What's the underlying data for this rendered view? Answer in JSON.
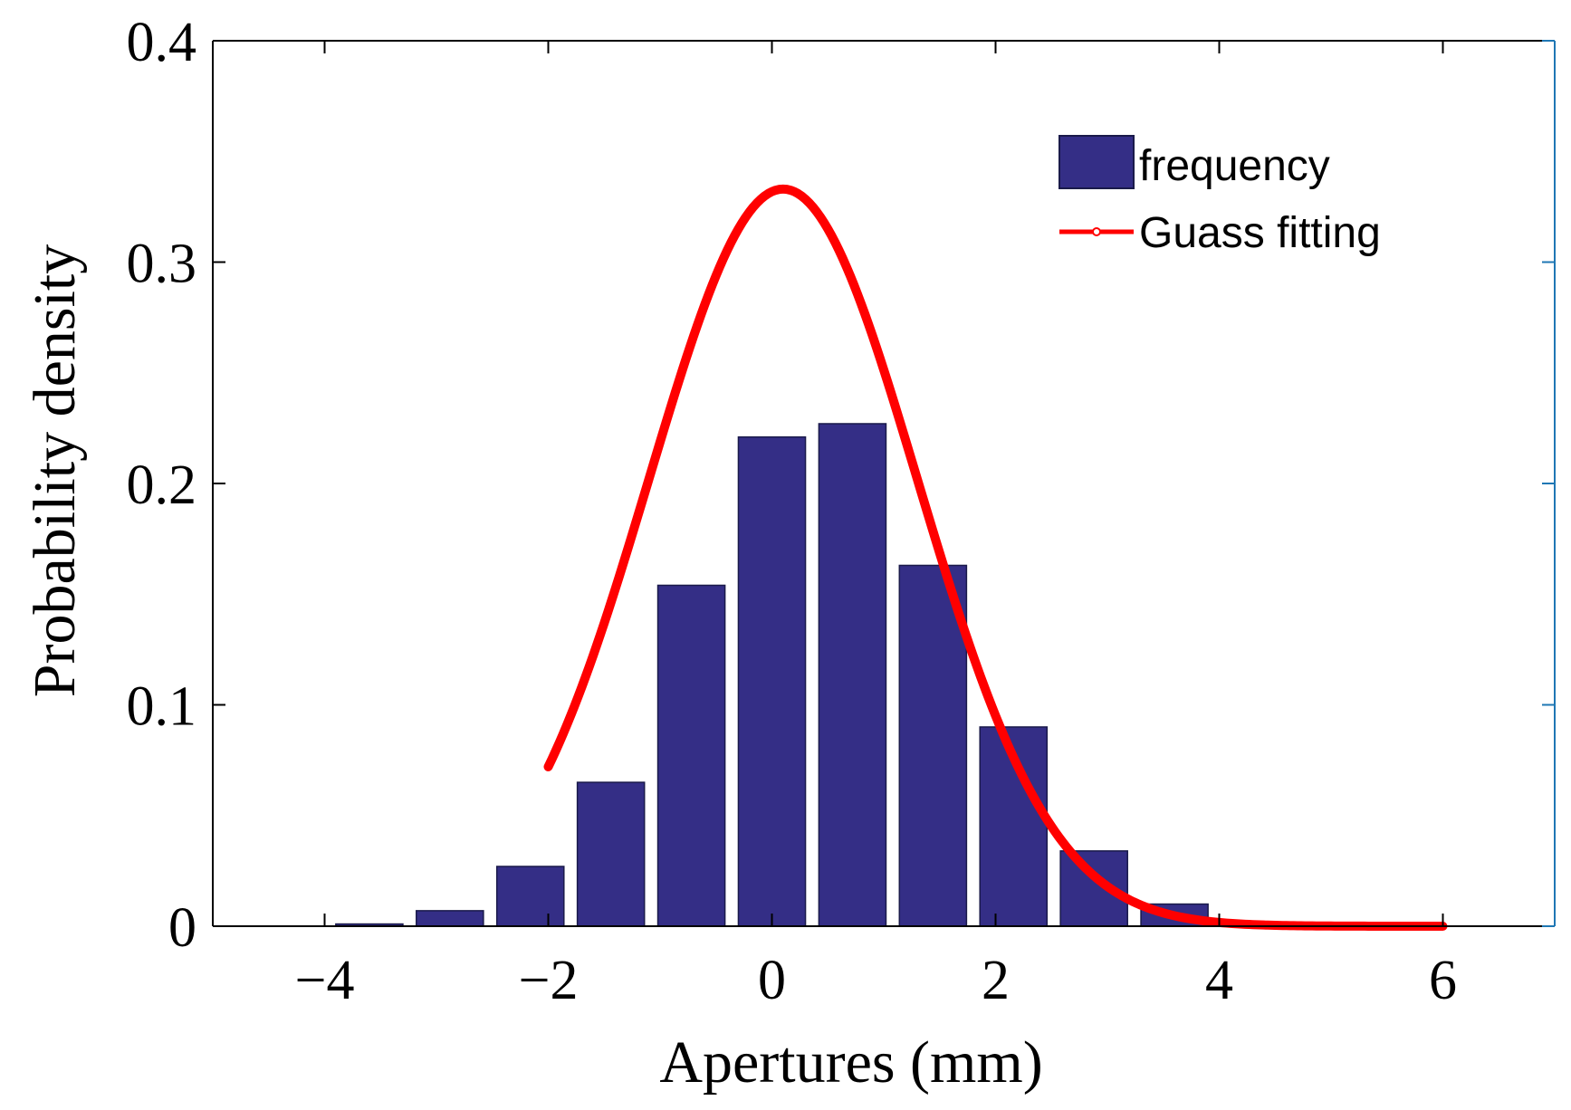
{
  "chart_data": {
    "type": "bar",
    "title": "",
    "xlabel": "Apertures (mm)",
    "ylabel": "Probability density",
    "xlim": [
      -5,
      7
    ],
    "ylim": [
      0,
      0.4
    ],
    "xticks": [
      -4,
      -2,
      0,
      2,
      4,
      6
    ],
    "xtick_labels": [
      "−4",
      "−2",
      "0",
      "2",
      "4",
      "6"
    ],
    "yticks": [
      0,
      0.1,
      0.2,
      0.3,
      0.4
    ],
    "ytick_labels": [
      "0",
      "0.1",
      "0.2",
      "0.3",
      "0.4"
    ],
    "bar_width": 0.6,
    "series": [
      {
        "name": "frequency",
        "kind": "bar",
        "color": "#342E86",
        "x": [
          -3.6,
          -2.88,
          -2.16,
          -1.44,
          -0.72,
          0.0,
          0.72,
          1.44,
          2.16,
          2.88,
          3.6
        ],
        "values": [
          0.001,
          0.007,
          0.027,
          0.065,
          0.154,
          0.221,
          0.227,
          0.163,
          0.09,
          0.034,
          0.01
        ]
      },
      {
        "name": "Guass fitting",
        "kind": "line",
        "color": "#FF0000",
        "x_range": [
          -2.0,
          6.0
        ],
        "mean": 0.1,
        "std": 1.2,
        "peak": 0.333
      }
    ],
    "legend": {
      "position": "top-right",
      "entries": [
        "frequency",
        "Guass fitting"
      ]
    }
  }
}
